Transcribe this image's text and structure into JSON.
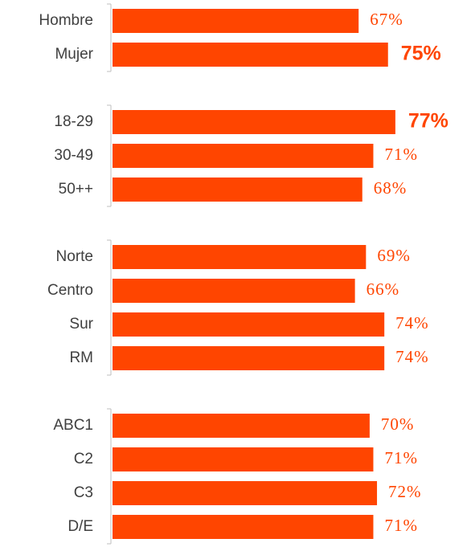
{
  "chart_data": {
    "type": "bar",
    "orientation": "horizontal",
    "color": "#ff4500",
    "xlim": [
      0,
      100
    ],
    "groups": [
      {
        "categories": [
          "Hombre",
          "Mujer"
        ],
        "values": [
          67,
          75
        ],
        "value_labels": [
          "67%",
          "75%"
        ],
        "emphasis": [
          false,
          true
        ]
      },
      {
        "categories": [
          "18-29",
          "30-49",
          "50++"
        ],
        "values": [
          77,
          71,
          68
        ],
        "value_labels": [
          "77%",
          "71%",
          "68%"
        ],
        "emphasis": [
          true,
          false,
          false
        ]
      },
      {
        "categories": [
          "Norte",
          "Centro",
          "Sur",
          "RM"
        ],
        "values": [
          69,
          66,
          74,
          74
        ],
        "value_labels": [
          "69%",
          "66%",
          "74%",
          "74%"
        ],
        "emphasis": [
          false,
          false,
          false,
          false
        ]
      },
      {
        "categories": [
          "ABC1",
          "C2",
          "C3",
          "D/E"
        ],
        "values": [
          70,
          71,
          72,
          71
        ],
        "value_labels": [
          "70%",
          "71%",
          "72%",
          "71%"
        ],
        "emphasis": [
          false,
          false,
          false,
          false
        ]
      }
    ]
  }
}
